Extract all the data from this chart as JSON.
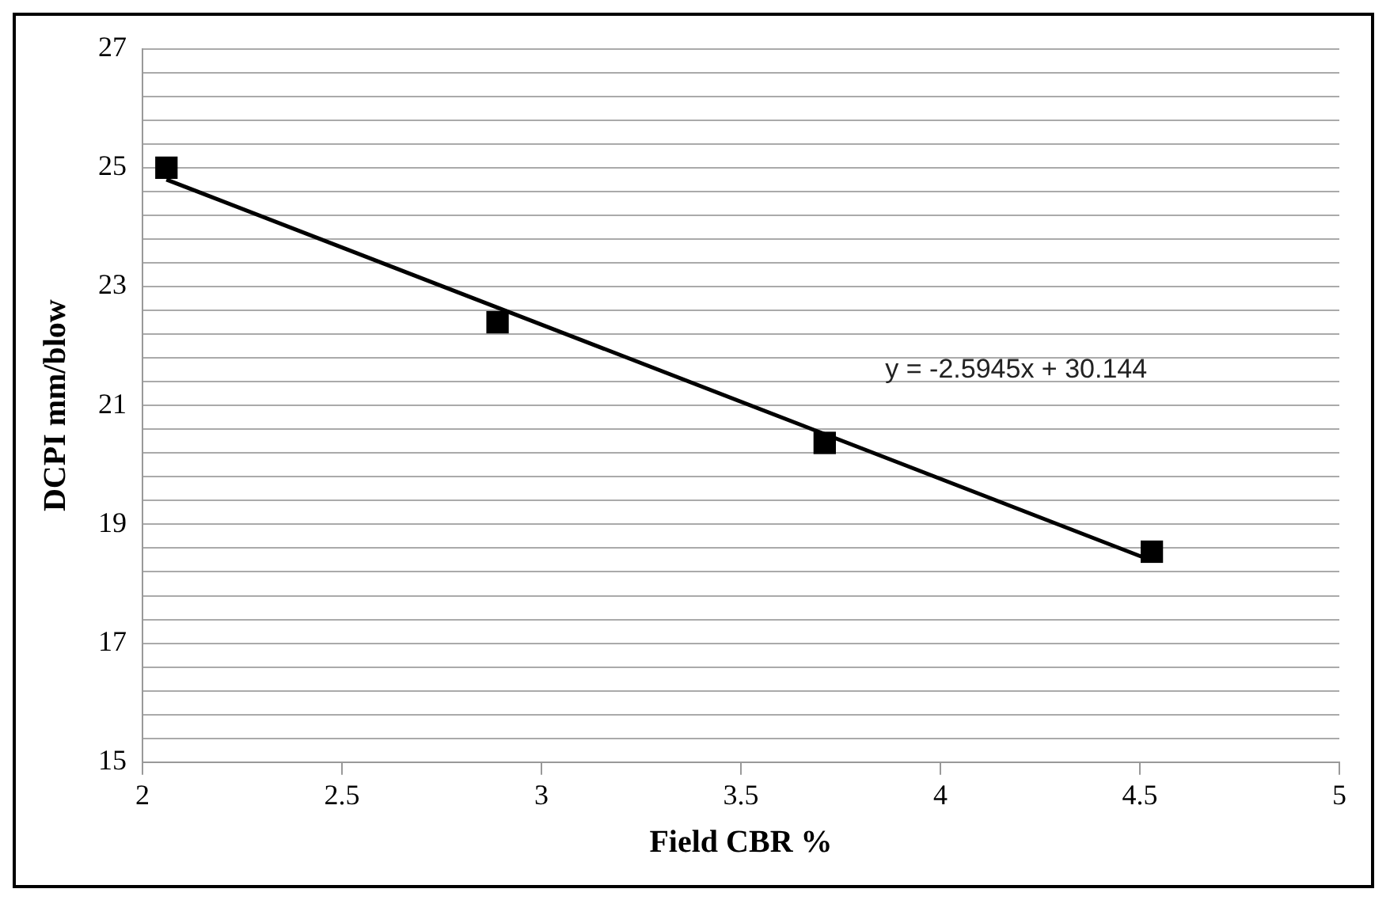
{
  "chart_data": {
    "type": "scatter",
    "xlabel": "Field CBR %",
    "ylabel": "DCPI mm/blow",
    "series": [
      {
        "type": "scatter",
        "color": "#000000",
        "marker": "square",
        "x": [
          2.06,
          2.89,
          3.71,
          4.53
        ],
        "values": [
          25.0,
          22.4,
          20.37,
          18.54
        ]
      },
      {
        "type": "line",
        "color": "#000000",
        "marker": "none",
        "line_style": "solid",
        "x": [
          2.06,
          4.53
        ],
        "values": [
          24.8,
          18.39
        ]
      }
    ],
    "annotations": [
      "y = -2.5945x + 30.144"
    ],
    "xlim": [
      2,
      5
    ],
    "xticks": [
      2,
      2.5,
      3,
      3.5,
      4,
      4.5,
      5
    ],
    "ylim": [
      15,
      27
    ],
    "yticks": [
      15,
      {
        "value": 15.4,
        "label": null
      },
      {
        "value": 15.8,
        "label": null
      },
      {
        "value": 16.2,
        "label": null
      },
      {
        "value": 16.6,
        "label": null
      },
      17,
      {
        "value": 17.4,
        "label": null
      },
      {
        "value": 17.8,
        "label": null
      },
      {
        "value": 18.2,
        "label": null
      },
      {
        "value": 18.6,
        "label": null
      },
      19,
      {
        "value": 19.4,
        "label": null
      },
      {
        "value": 19.8,
        "label": null
      },
      {
        "value": 20.2,
        "label": null
      },
      {
        "value": 20.6,
        "label": null
      },
      21,
      {
        "value": 21.4,
        "label": null
      },
      {
        "value": 21.8,
        "label": null
      },
      {
        "value": 22.2,
        "label": null
      },
      {
        "value": 22.6,
        "label": null
      },
      23,
      {
        "value": 23.4,
        "label": null
      },
      {
        "value": 23.8,
        "label": null
      },
      {
        "value": 24.2,
        "label": null
      },
      {
        "value": 24.6,
        "label": null
      },
      25,
      {
        "value": 25.4,
        "label": null
      },
      {
        "value": 25.8,
        "label": null
      },
      {
        "value": 26.2,
        "label": null
      },
      {
        "value": 26.6,
        "label": null
      },
      27
    ],
    "grid": "y",
    "legend": false
  }
}
